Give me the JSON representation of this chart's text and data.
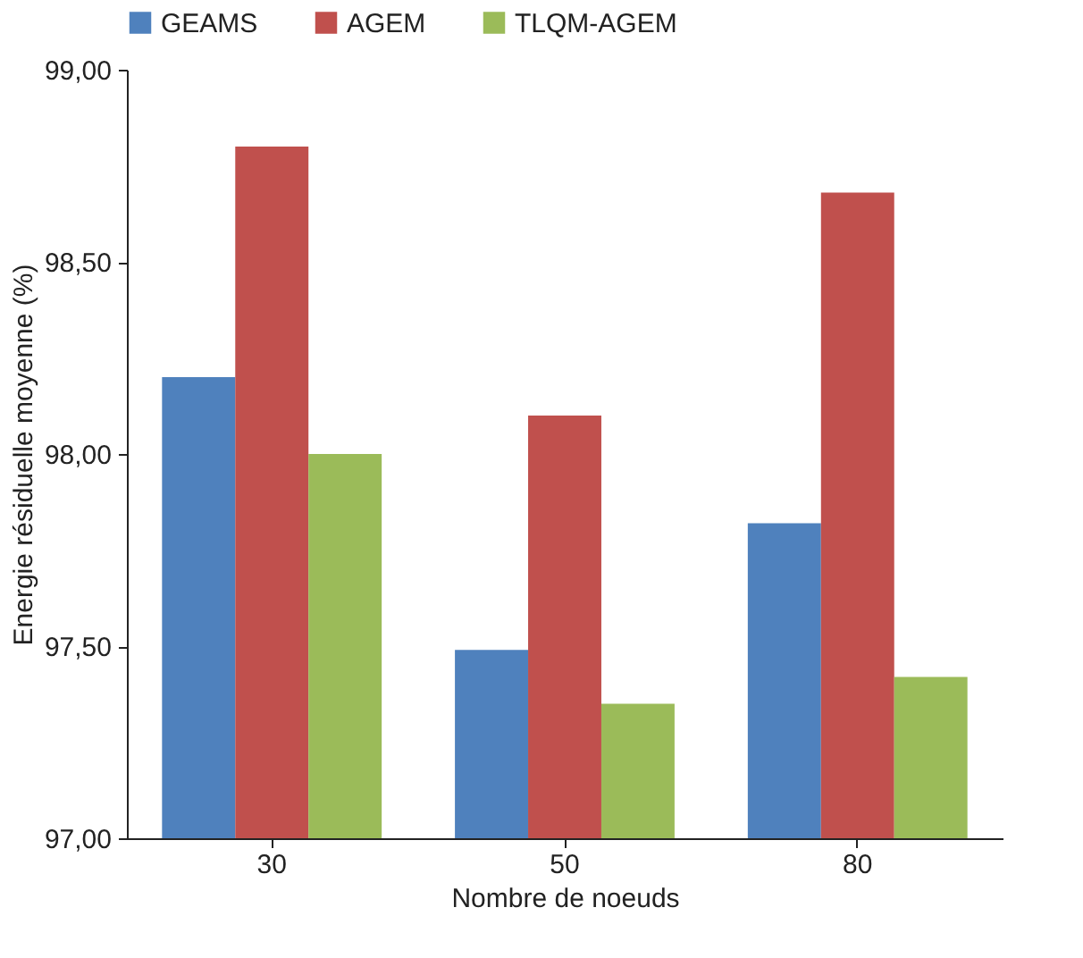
{
  "chart_data": {
    "type": "bar",
    "xlabel": "Nombre de noeuds",
    "ylabel": "Energie résiduelle moyenne (%)",
    "categories": [
      "30",
      "50",
      "80"
    ],
    "series": [
      {
        "name": "GEAMS",
        "color": "#4f81bd",
        "values": [
          98.2,
          97.49,
          97.82
        ]
      },
      {
        "name": "AGEM",
        "color": "#c0504d",
        "values": [
          98.8,
          98.1,
          98.68
        ]
      },
      {
        "name": "TLQM-AGEM",
        "color": "#9bbb59",
        "values": [
          98.0,
          97.35,
          97.42
        ]
      }
    ],
    "ylim": [
      97,
      99
    ],
    "yticks": [
      {
        "value": 97,
        "label": "97,00"
      },
      {
        "value": 97.5,
        "label": "97,50"
      },
      {
        "value": 98,
        "label": "98,00"
      },
      {
        "value": 98.5,
        "label": "98,50"
      },
      {
        "value": 99,
        "label": "99,00"
      }
    ],
    "grid": false,
    "legend": "top"
  }
}
